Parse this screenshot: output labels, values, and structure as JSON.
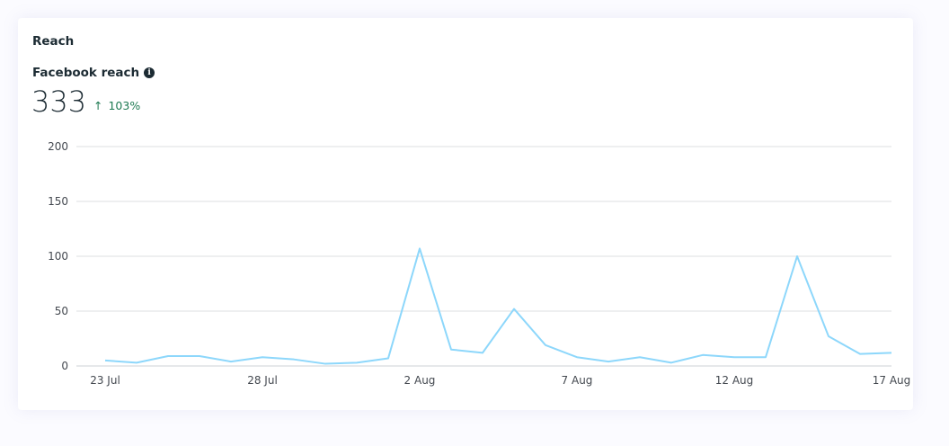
{
  "card": {
    "title": "Reach",
    "metric_label": "Facebook reach",
    "info_icon": "info-circle-icon",
    "value": "333",
    "change": {
      "arrow": "↑",
      "arrow_icon": "arrow-up-icon",
      "percent": "103%",
      "color": "#1e7a52"
    }
  },
  "chart_data": {
    "type": "line",
    "title": "",
    "xlabel": "",
    "ylabel": "",
    "ylim": [
      0,
      200
    ],
    "y_ticks": [
      "0",
      "50",
      "100",
      "150",
      "200"
    ],
    "x_tick_labels": [
      "23 Jul",
      "28 Jul",
      "2 Aug",
      "7 Aug",
      "12 Aug",
      "17 Aug"
    ],
    "grid": true,
    "line_color": "#8dd7fb",
    "x": [
      "23 Jul",
      "24 Jul",
      "25 Jul",
      "26 Jul",
      "27 Jul",
      "28 Jul",
      "29 Jul",
      "30 Jul",
      "31 Jul",
      "1 Aug",
      "2 Aug",
      "3 Aug",
      "4 Aug",
      "5 Aug",
      "6 Aug",
      "7 Aug",
      "8 Aug",
      "9 Aug",
      "10 Aug",
      "11 Aug",
      "12 Aug",
      "13 Aug",
      "14 Aug",
      "15 Aug",
      "16 Aug",
      "17 Aug"
    ],
    "series": [
      {
        "values": [
          5,
          3,
          9,
          9,
          4,
          8,
          6,
          2,
          3,
          7,
          107,
          15,
          12,
          52,
          19,
          8,
          4,
          8,
          3,
          10,
          8,
          8,
          100,
          27,
          11,
          12
        ]
      }
    ]
  }
}
